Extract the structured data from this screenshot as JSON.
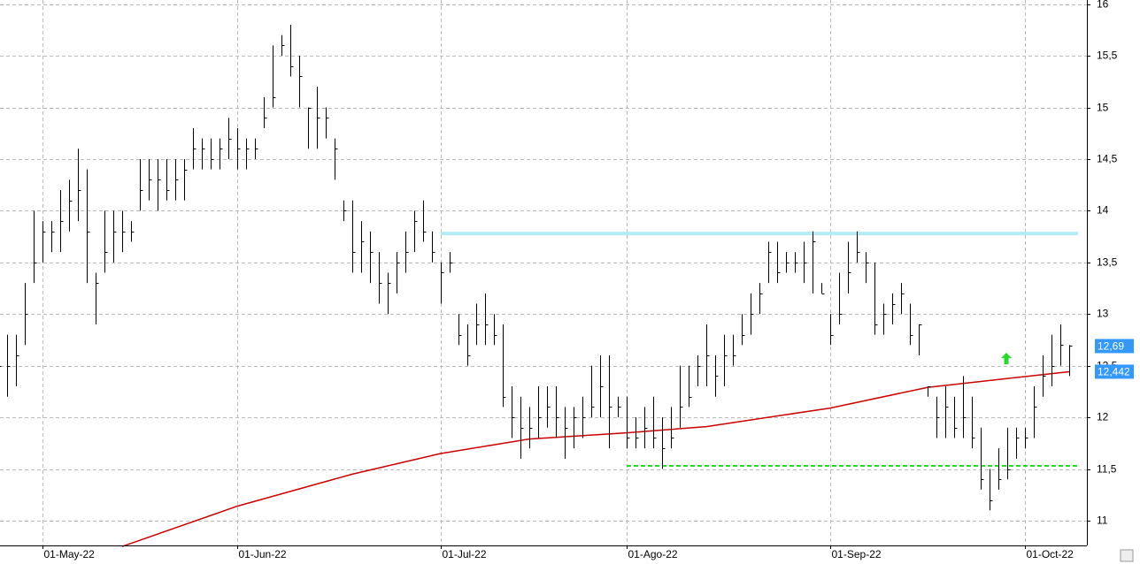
{
  "chart_data": {
    "type": "hlc",
    "categories": [
      null,
      null,
      null,
      null,
      null,
      "01-May-22",
      null,
      null,
      null,
      null,
      null,
      null,
      null,
      null,
      null,
      null,
      null,
      null,
      null,
      null,
      null,
      null,
      null,
      null,
      null,
      null,
      null,
      "01-Jun-22",
      null,
      null,
      null,
      null,
      null,
      null,
      null,
      null,
      null,
      null,
      null,
      null,
      null,
      null,
      null,
      null,
      null,
      null,
      null,
      null,
      null,
      null,
      "01-Jul-22",
      null,
      null,
      null,
      null,
      null,
      null,
      null,
      null,
      null,
      null,
      null,
      null,
      null,
      null,
      null,
      null,
      null,
      null,
      null,
      null,
      "01-Ago-22",
      null,
      null,
      null,
      null,
      null,
      null,
      null,
      null,
      null,
      null,
      null,
      null,
      null,
      null,
      null,
      null,
      null,
      null,
      null,
      null,
      null,
      null,
      "01-Sep-22",
      null,
      null,
      null,
      null,
      null,
      null,
      null,
      null,
      null,
      null,
      null,
      null,
      null,
      null,
      null,
      null,
      null,
      null,
      null,
      null,
      null,
      "01-Oct-22",
      null,
      null,
      null,
      null,
      null
    ],
    "high": [
      12.8,
      12.8,
      12.8,
      13.3,
      14.0,
      13.9,
      13.9,
      14.2,
      14.3,
      14.6,
      14.4,
      13.4,
      14.0,
      14.0,
      14.0,
      13.9,
      14.5,
      14.5,
      14.5,
      14.5,
      14.5,
      14.5,
      14.8,
      14.7,
      14.7,
      14.7,
      14.9,
      14.8,
      14.7,
      14.7,
      15.1,
      15.6,
      15.7,
      15.8,
      15.5,
      15.0,
      15.2,
      15.0,
      14.7,
      14.1,
      14.1,
      13.9,
      13.8,
      13.6,
      13.4,
      13.6,
      13.8,
      14.0,
      14.1,
      13.8,
      13.5,
      13.6,
      13.0,
      12.9,
      13.1,
      13.2,
      13.0,
      12.9,
      12.3,
      12.2,
      12.1,
      12.3,
      12.3,
      12.3,
      12.1,
      12.1,
      12.2,
      12.5,
      12.6,
      12.6,
      12.2,
      12.2,
      12.0,
      12.1,
      12.2,
      12.0,
      12.1,
      12.5,
      12.5,
      12.6,
      12.9,
      12.6,
      12.8,
      12.8,
      13.0,
      13.2,
      13.3,
      13.7,
      13.7,
      13.6,
      13.6,
      13.7,
      13.8,
      13.3,
      13.0,
      13.4,
      13.7,
      13.8,
      13.6,
      13.5,
      13.1,
      13.2,
      13.3,
      13.1,
      12.9,
      12.3,
      12.2,
      12.3,
      12.2,
      12.4,
      12.2,
      11.9,
      11.5,
      11.7,
      11.9,
      11.9,
      11.9,
      12.3,
      12.6,
      12.8,
      12.9,
      12.7
    ],
    "low": [
      12.2,
      12.2,
      12.3,
      12.7,
      13.3,
      13.5,
      13.6,
      13.6,
      13.8,
      13.9,
      13.3,
      12.9,
      13.4,
      13.5,
      13.6,
      13.7,
      14.0,
      14.1,
      14.0,
      14.1,
      14.1,
      14.1,
      14.4,
      14.4,
      14.4,
      14.4,
      14.5,
      14.4,
      14.4,
      14.5,
      14.8,
      15.0,
      15.5,
      15.3,
      15.0,
      14.6,
      14.6,
      14.7,
      14.3,
      13.9,
      13.4,
      13.4,
      13.3,
      13.1,
      13.0,
      13.2,
      13.4,
      13.6,
      13.7,
      13.5,
      13.1,
      13.4,
      12.7,
      12.5,
      12.7,
      12.7,
      12.7,
      12.1,
      11.8,
      11.6,
      11.7,
      11.8,
      11.9,
      11.8,
      11.6,
      11.7,
      11.8,
      12.0,
      12.0,
      11.7,
      12.0,
      11.7,
      11.7,
      11.7,
      11.7,
      11.5,
      11.7,
      11.9,
      12.1,
      12.3,
      12.3,
      12.2,
      12.3,
      12.5,
      12.7,
      12.8,
      13.0,
      13.3,
      13.3,
      13.4,
      13.4,
      13.3,
      13.2,
      13.2,
      12.7,
      12.9,
      13.2,
      13.5,
      13.3,
      12.8,
      12.8,
      12.9,
      13.0,
      12.7,
      12.6,
      12.2,
      11.8,
      11.8,
      11.8,
      11.8,
      11.7,
      11.3,
      11.1,
      11.3,
      11.4,
      11.6,
      11.7,
      11.8,
      12.2,
      12.3,
      12.5,
      12.4
    ],
    "close": [
      12.5,
      12.5,
      12.6,
      13.0,
      13.5,
      13.8,
      13.8,
      13.9,
      14.1,
      14.2,
      13.8,
      13.3,
      13.6,
      13.8,
      13.8,
      13.8,
      14.2,
      14.3,
      14.3,
      14.2,
      14.3,
      14.4,
      14.6,
      14.6,
      14.5,
      14.6,
      14.7,
      14.6,
      14.6,
      14.6,
      14.9,
      15.1,
      15.6,
      15.4,
      15.3,
      15.0,
      14.9,
      14.9,
      14.6,
      14.0,
      13.6,
      13.7,
      13.6,
      13.3,
      13.3,
      13.5,
      13.6,
      13.9,
      13.8,
      13.6,
      13.4,
      13.5,
      12.8,
      12.6,
      12.9,
      12.9,
      12.8,
      12.2,
      12.0,
      11.9,
      11.9,
      12.0,
      12.1,
      12.0,
      11.9,
      12.0,
      12.0,
      12.1,
      12.3,
      12.1,
      12.1,
      11.8,
      11.8,
      11.9,
      11.8,
      11.7,
      11.8,
      12.1,
      12.2,
      12.5,
      12.6,
      12.4,
      12.6,
      12.6,
      12.8,
      13.0,
      13.2,
      13.6,
      13.4,
      13.5,
      13.5,
      13.5,
      13.7,
      13.2,
      12.8,
      13.0,
      13.4,
      13.6,
      13.5,
      12.9,
      13.0,
      13.1,
      13.2,
      12.8,
      12.9,
      12.3,
      12.0,
      12.1,
      11.9,
      12.0,
      11.8,
      11.4,
      11.2,
      11.4,
      11.5,
      11.8,
      11.8,
      12.1,
      12.4,
      12.5,
      12.7,
      12.69
    ],
    "color": "#000000",
    "moving_average": {
      "color": "#cc0000",
      "x": [
        14,
        27,
        40,
        50,
        60,
        71,
        80,
        94,
        105,
        121
      ],
      "values": [
        10.75,
        11.14,
        11.45,
        11.65,
        11.79,
        11.85,
        11.91,
        12.09,
        12.29,
        12.442
      ]
    },
    "levels": [
      {
        "value": 13.78,
        "color": "#b3ecf5",
        "from": 50,
        "dashed": false
      },
      {
        "value": 11.53,
        "color": "#22dd22",
        "from": 71,
        "dashed": true
      }
    ],
    "price_tags": [
      {
        "value": 12.69,
        "label": "12,69"
      },
      {
        "value": 12.442,
        "label": "12,442"
      }
    ],
    "price_tag_color": "#3399ff",
    "ylim": [
      10.76,
      16.04
    ],
    "yticks": [
      11,
      {
        "value": 11.5,
        "label": "11,5"
      },
      12,
      {
        "value": 12.5,
        "label": "12,5"
      },
      13,
      {
        "value": 13.5,
        "label": "13,5"
      },
      14,
      {
        "value": 14.5,
        "label": "14,5"
      },
      15,
      {
        "value": 15.5,
        "label": "15,5"
      },
      16
    ],
    "grid": true
  }
}
